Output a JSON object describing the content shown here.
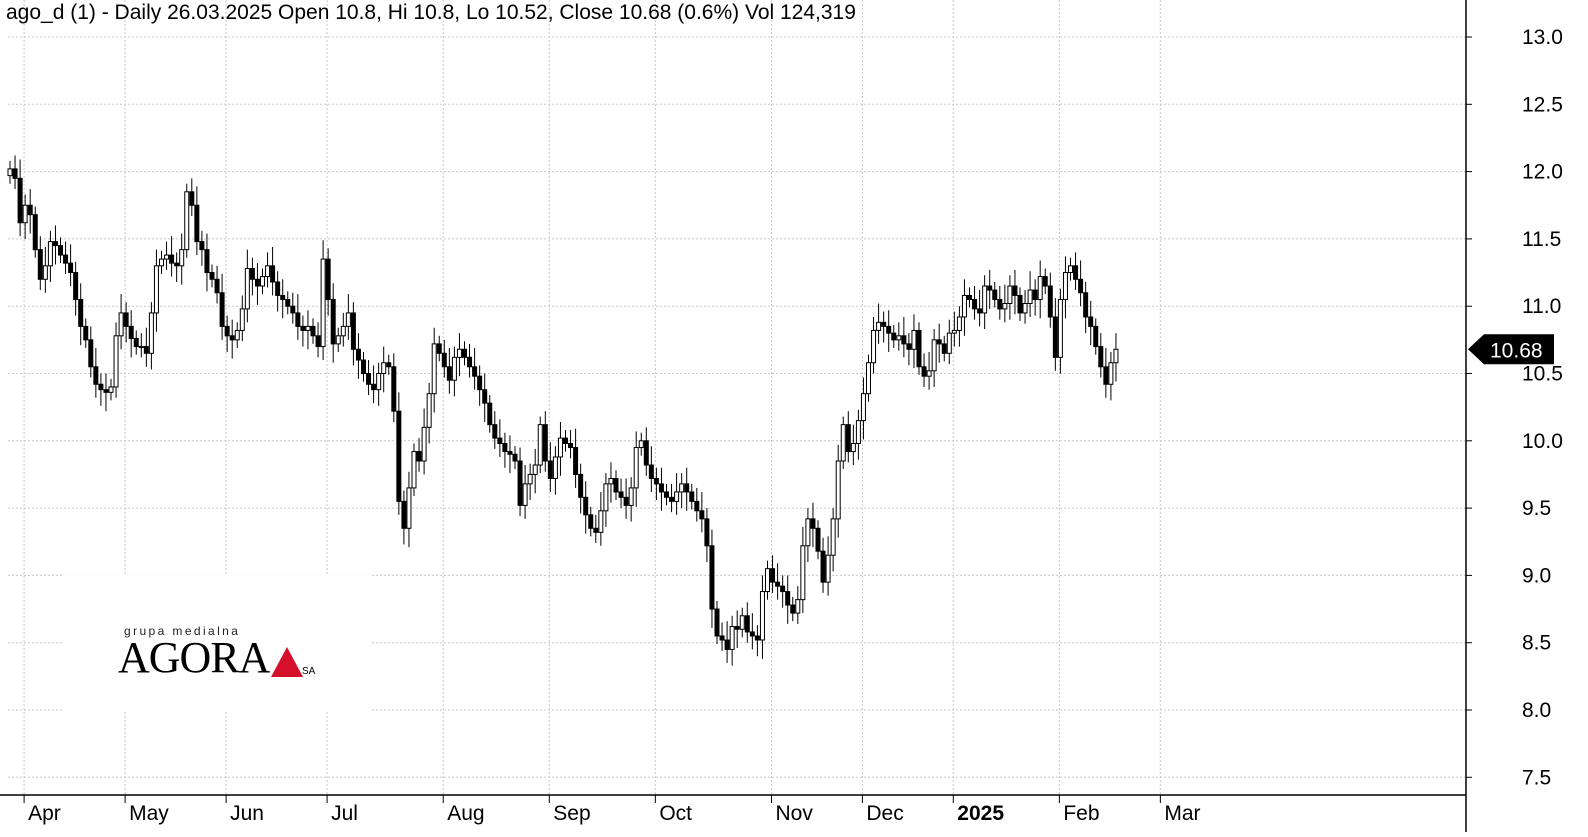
{
  "header": {
    "title": "ago_d (1) - Daily 26.03.2025 Open 10.8, Hi 10.8, Lo 10.52, Close 10.68 (0.6%) Vol 124,319"
  },
  "logo": {
    "tagline": "grupa medialna",
    "wordmark": "AGORA",
    "suffix": "SA"
  },
  "price_tag": {
    "label": "10.68",
    "value": 10.68
  },
  "colors": {
    "up_body": "#ffffff",
    "down_body": "#000000",
    "grid": "#c8c8c8",
    "axis": "#000000"
  },
  "chart_data": {
    "type": "candlestick",
    "title": "ago_d (1) - Daily 26.03.2025 Open 10.8, Hi 10.8, Lo 10.52, Close 10.68 (0.6%) Vol 124,319",
    "ylim": [
      7.3,
      13.2
    ],
    "y_ticks": [
      "7.5",
      "8.0",
      "8.5",
      "9.0",
      "9.5",
      "10.0",
      "10.5",
      "11.0",
      "11.5",
      "12.0",
      "12.5",
      "13.0"
    ],
    "x_months": [
      {
        "label": "Apr",
        "index": 2
      },
      {
        "label": "May",
        "index": 22
      },
      {
        "label": "Jun",
        "index": 42
      },
      {
        "label": "Jul",
        "index": 62
      },
      {
        "label": "Aug",
        "index": 85
      },
      {
        "label": "Sep",
        "index": 106
      },
      {
        "label": "Oct",
        "index": 127
      },
      {
        "label": "Nov",
        "index": 150
      },
      {
        "label": "Dec",
        "index": 168
      },
      {
        "label": "2025",
        "index": 186,
        "bold": true
      },
      {
        "label": "Feb",
        "index": 207
      },
      {
        "label": "Mar",
        "index": 227
      }
    ],
    "grid": true,
    "close_series": [
      12.02,
      11.95,
      11.62,
      11.75,
      11.68,
      11.42,
      11.2,
      11.3,
      11.48,
      11.45,
      11.38,
      11.32,
      11.25,
      11.05,
      10.85,
      10.75,
      10.55,
      10.42,
      10.38,
      10.36,
      10.4,
      10.78,
      10.95,
      10.85,
      10.76,
      10.7,
      10.7,
      10.65,
      10.95,
      11.3,
      11.35,
      11.38,
      11.32,
      11.3,
      11.42,
      11.85,
      11.75,
      11.48,
      11.42,
      11.25,
      11.2,
      11.1,
      10.85,
      10.78,
      10.75,
      10.82,
      10.98,
      11.28,
      11.2,
      11.15,
      11.22,
      11.3,
      11.18,
      11.08,
      11.05,
      11.0,
      10.95,
      10.85,
      10.82,
      10.85,
      10.78,
      10.7,
      11.35,
      11.05,
      10.72,
      10.78,
      10.85,
      10.95,
      10.68,
      10.6,
      10.5,
      10.42,
      10.38,
      10.5,
      10.58,
      10.55,
      10.22,
      9.55,
      9.35,
      9.65,
      9.92,
      9.85,
      10.1,
      10.35,
      10.72,
      10.65,
      10.55,
      10.45,
      10.62,
      10.68,
      10.62,
      10.55,
      10.48,
      10.38,
      10.28,
      10.12,
      10.02,
      9.98,
      9.92,
      9.9,
      9.85,
      9.52,
      9.68,
      9.75,
      9.82,
      10.12,
      9.85,
      9.72,
      9.88,
      10.02,
      9.98,
      9.95,
      9.75,
      9.58,
      9.45,
      9.35,
      9.32,
      9.48,
      9.68,
      9.72,
      9.62,
      9.58,
      9.52,
      9.65,
      9.95,
      10.0,
      9.82,
      9.72,
      9.68,
      9.62,
      9.58,
      9.55,
      9.62,
      9.68,
      9.62,
      9.55,
      9.48,
      9.42,
      9.22,
      8.75,
      8.55,
      8.52,
      8.45,
      8.62,
      8.6,
      8.7,
      8.58,
      8.55,
      8.52,
      8.88,
      9.05,
      8.95,
      8.92,
      8.88,
      8.78,
      8.72,
      8.82,
      9.22,
      9.42,
      9.35,
      9.18,
      8.95,
      9.15,
      9.42,
      9.85,
      10.12,
      9.92,
      9.98,
      10.15,
      10.35,
      10.58,
      10.82,
      10.88,
      10.85,
      10.8,
      10.75,
      10.78,
      10.72,
      10.68,
      10.82,
      10.55,
      10.48,
      10.52,
      10.75,
      10.72,
      10.65,
      10.8,
      10.82,
      10.92,
      11.08,
      11.05,
      10.98,
      10.95,
      11.15,
      11.12,
      11.05,
      10.98,
      11.02,
      11.15,
      11.08,
      10.95,
      11.02,
      11.12,
      11.05,
      11.22,
      11.15,
      10.92,
      10.62,
      11.05,
      11.25,
      11.3,
      11.2,
      11.1,
      10.92,
      10.85,
      10.7,
      10.55,
      10.42,
      10.58,
      10.68
    ],
    "last_close": 10.68
  }
}
